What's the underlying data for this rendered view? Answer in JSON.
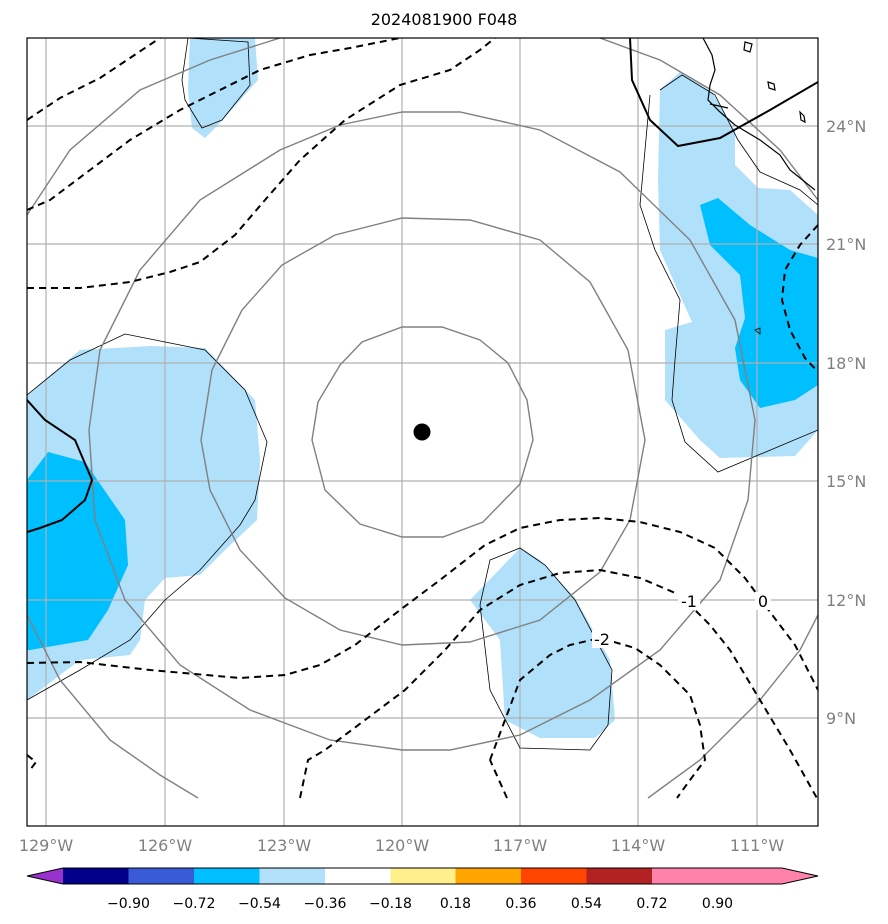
{
  "title": "2024081900 F048",
  "map": {
    "lon_labels": [
      "129°W",
      "126°W",
      "123°W",
      "120°W",
      "117°W",
      "114°W",
      "111°W"
    ],
    "lat_labels": [
      "24°N",
      "21°N",
      "18°N",
      "15°N",
      "12°N",
      "9°N"
    ],
    "contour_labels": [
      "0",
      "-1",
      "-2"
    ],
    "center_marker": "storm-center-dot"
  },
  "colorbar": {
    "colors": [
      "#9932cc",
      "#00008b",
      "#3a5bd6",
      "#00bfff",
      "#b0e0fa",
      "#ffffff",
      "#fff08c",
      "#ffa500",
      "#ff4500",
      "#b22222",
      "#ff82ab"
    ],
    "tick_labels": [
      "−0.90",
      "−0.72",
      "−0.54",
      "−0.36",
      "−0.18",
      "0.18",
      "0.36",
      "0.54",
      "0.72",
      "0.90"
    ]
  }
}
